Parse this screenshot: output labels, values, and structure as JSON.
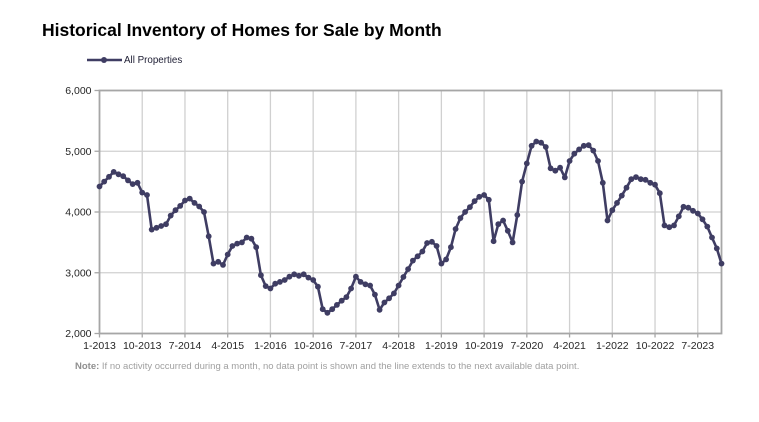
{
  "title": "Historical Inventory of Homes for Sale by Month",
  "legend": {
    "label": "All Properties"
  },
  "note": {
    "prefix": "Note:",
    "text": " If no activity occurred during a month, no data point is shown and the line extends to the next available data point."
  },
  "colors": {
    "line": "#3f3d63",
    "grid": "#d0d0d0",
    "axis": "#a6a6a6",
    "axis_text": "#262626",
    "note_text": "#a0a0a0"
  },
  "chart_data": {
    "type": "line",
    "title": "Historical Inventory of Homes for Sale by Month",
    "xlabel": "",
    "ylabel": "",
    "x_frequency": "monthly",
    "x_start": "1-2013",
    "x_end": "12-2023",
    "x_tick_interval_months": 9,
    "x_tick_labels": [
      "1-2013",
      "10-2013",
      "7-2014",
      "4-2015",
      "1-2016",
      "10-2016",
      "7-2017",
      "4-2018",
      "1-2019",
      "10-2019",
      "7-2020",
      "4-2021",
      "1-2022",
      "10-2022",
      "7-2023"
    ],
    "ylim": [
      2000,
      6000
    ],
    "y_ticks": [
      2000,
      3000,
      4000,
      5000,
      6000
    ],
    "y_tick_labels": [
      "2,000",
      "3,000",
      "4,000",
      "5,000",
      "6,000"
    ],
    "grid": true,
    "legend_position": "top-left",
    "series": [
      {
        "name": "All Properties",
        "values": [
          4420,
          4500,
          4580,
          4660,
          4620,
          4590,
          4520,
          4460,
          4480,
          4320,
          4280,
          3710,
          3740,
          3770,
          3800,
          3940,
          4030,
          4100,
          4190,
          4220,
          4150,
          4090,
          4000,
          3600,
          3150,
          3180,
          3130,
          3300,
          3440,
          3480,
          3500,
          3580,
          3560,
          3420,
          2960,
          2780,
          2740,
          2820,
          2850,
          2880,
          2935,
          2975,
          2950,
          2975,
          2920,
          2880,
          2770,
          2400,
          2340,
          2400,
          2470,
          2540,
          2600,
          2740,
          2935,
          2850,
          2810,
          2790,
          2640,
          2390,
          2510,
          2580,
          2660,
          2790,
          2930,
          3060,
          3200,
          3270,
          3350,
          3490,
          3510,
          3440,
          3150,
          3220,
          3420,
          3720,
          3900,
          4000,
          4080,
          4180,
          4250,
          4280,
          4200,
          3520,
          3800,
          3860,
          3690,
          3500,
          3950,
          4500,
          4800,
          5090,
          5160,
          5140,
          5070,
          4720,
          4680,
          4730,
          4570,
          4840,
          4960,
          5030,
          5090,
          5100,
          5010,
          4840,
          4480,
          3860,
          4030,
          4150,
          4270,
          4400,
          4540,
          4575,
          4540,
          4530,
          4480,
          4450,
          4310,
          3780,
          3750,
          3780,
          3930,
          4085,
          4070,
          4020,
          3975,
          3880,
          3760,
          3580,
          3400,
          3150
        ]
      }
    ]
  }
}
